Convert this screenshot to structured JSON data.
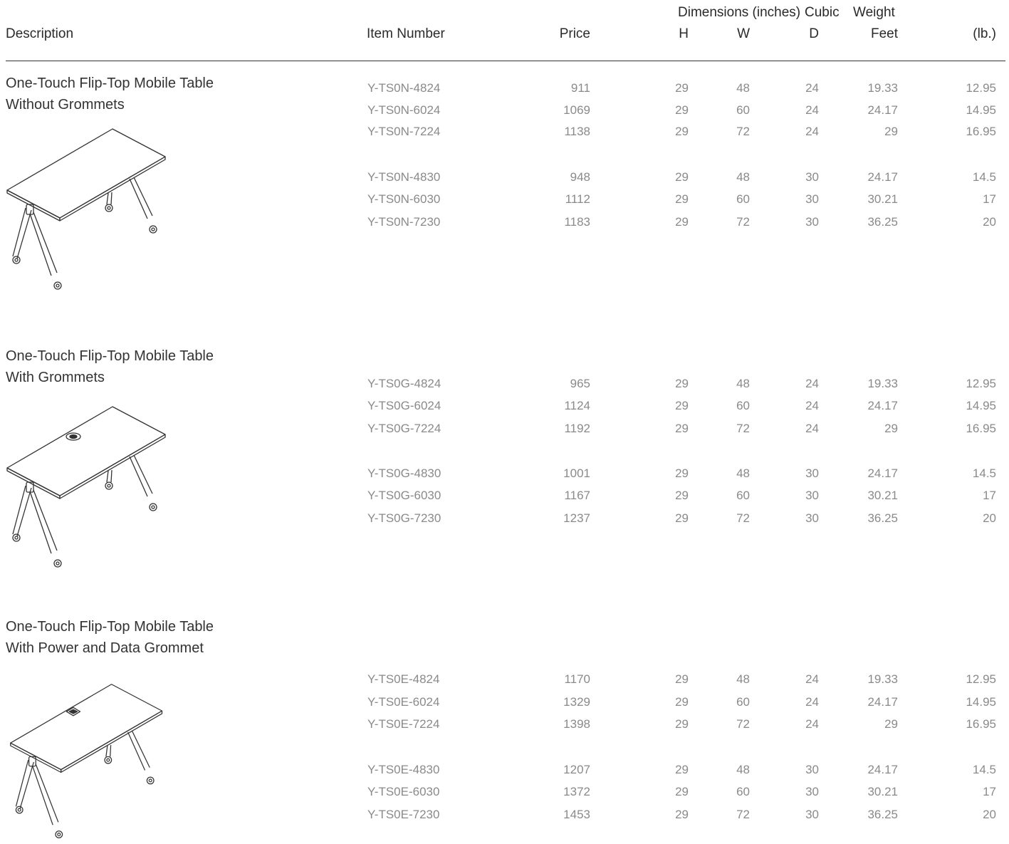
{
  "header": {
    "group_dimensions": "Dimensions (inches)",
    "group_cubic": "Cubic",
    "group_weight": "Weight",
    "col_description": "Description",
    "col_item_number": "Item Number",
    "col_price": "Price",
    "col_h": "H",
    "col_w": "W",
    "col_d": "D",
    "col_feet": "Feet",
    "col_lb": "(lb.)"
  },
  "sections": [
    {
      "title_line1": "One-Touch Flip-Top Mobile Table",
      "title_line2": "Without Grommets",
      "grommet": "none",
      "rows": [
        {
          "item": "Y-TS0N-4824",
          "price": "911",
          "h": "29",
          "w": "48",
          "d": "24",
          "cubic": "19.33",
          "weight": "12.95"
        },
        {
          "item": "Y-TS0N-6024",
          "price": "1069",
          "h": "29",
          "w": "60",
          "d": "24",
          "cubic": "24.17",
          "weight": "14.95"
        },
        {
          "item": "Y-TS0N-7224",
          "price": "1138",
          "h": "29",
          "w": "72",
          "d": "24",
          "cubic": "29",
          "weight": "16.95"
        },
        {
          "item": "Y-TS0N-4830",
          "price": "948",
          "h": "29",
          "w": "48",
          "d": "30",
          "cubic": "24.17",
          "weight": "14.5"
        },
        {
          "item": "Y-TS0N-6030",
          "price": "1112",
          "h": "29",
          "w": "60",
          "d": "30",
          "cubic": "30.21",
          "weight": "17"
        },
        {
          "item": "Y-TS0N-7230",
          "price": "1183",
          "h": "29",
          "w": "72",
          "d": "30",
          "cubic": "36.25",
          "weight": "20"
        }
      ]
    },
    {
      "title_line1": "One-Touch Flip-Top Mobile Table",
      "title_line2": "With Grommets",
      "grommet": "round",
      "rows": [
        {
          "item": "Y-TS0G-4824",
          "price": "965",
          "h": "29",
          "w": "48",
          "d": "24",
          "cubic": "19.33",
          "weight": "12.95"
        },
        {
          "item": "Y-TS0G-6024",
          "price": "1124",
          "h": "29",
          "w": "60",
          "d": "24",
          "cubic": "24.17",
          "weight": "14.95"
        },
        {
          "item": "Y-TS0G-7224",
          "price": "1192",
          "h": "29",
          "w": "72",
          "d": "24",
          "cubic": "29",
          "weight": "16.95"
        },
        {
          "item": "Y-TS0G-4830",
          "price": "1001",
          "h": "29",
          "w": "48",
          "d": "30",
          "cubic": "24.17",
          "weight": "14.5"
        },
        {
          "item": "Y-TS0G-6030",
          "price": "1167",
          "h": "29",
          "w": "60",
          "d": "30",
          "cubic": "30.21",
          "weight": "17"
        },
        {
          "item": "Y-TS0G-7230",
          "price": "1237",
          "h": "29",
          "w": "72",
          "d": "30",
          "cubic": "36.25",
          "weight": "20"
        }
      ]
    },
    {
      "title_line1": "One-Touch Flip-Top Mobile Table",
      "title_line2": "With Power and Data Grommet",
      "grommet": "square",
      "rows": [
        {
          "item": "Y-TS0E-4824",
          "price": "1170",
          "h": "29",
          "w": "48",
          "d": "24",
          "cubic": "19.33",
          "weight": "12.95"
        },
        {
          "item": "Y-TS0E-6024",
          "price": "1329",
          "h": "29",
          "w": "60",
          "d": "24",
          "cubic": "24.17",
          "weight": "14.95"
        },
        {
          "item": "Y-TS0E-7224",
          "price": "1398",
          "h": "29",
          "w": "72",
          "d": "24",
          "cubic": "29",
          "weight": "16.95"
        },
        {
          "item": "Y-TS0E-4830",
          "price": "1207",
          "h": "29",
          "w": "48",
          "d": "30",
          "cubic": "24.17",
          "weight": "14.5"
        },
        {
          "item": "Y-TS0E-6030",
          "price": "1372",
          "h": "29",
          "w": "60",
          "d": "30",
          "cubic": "30.21",
          "weight": "17"
        },
        {
          "item": "Y-TS0E-7230",
          "price": "1453",
          "h": "29",
          "w": "72",
          "d": "30",
          "cubic": "36.25",
          "weight": "20"
        }
      ]
    }
  ]
}
